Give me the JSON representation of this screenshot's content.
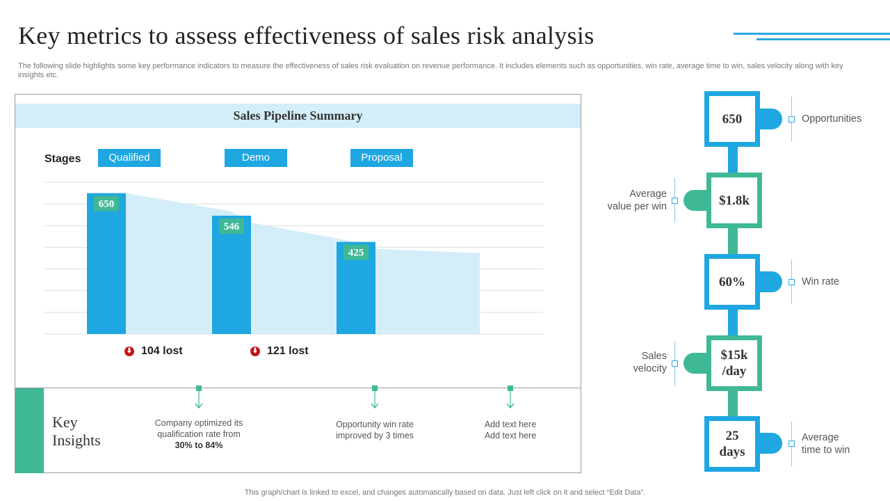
{
  "title": "Key metrics to assess effectiveness of sales risk analysis",
  "subtitle": "The following slide highlights some key performance indicators to measure the effectiveness of sales risk evaluation on revenue performance. It includes elements such as opportunities, win rate, average time to win, sales velocity along with key insights etc.",
  "panel": {
    "header": "Sales Pipeline Summary",
    "stages_label": "Stages",
    "stages": [
      "Qualified",
      "Demo",
      "Proposal"
    ],
    "lost": [
      {
        "label": "104 lost"
      },
      {
        "label": "121 lost"
      }
    ],
    "insights_title_1": "Key",
    "insights_title_2": "Insights",
    "insights": [
      {
        "line1": "Company optimized its",
        "line2": "qualification  rate from",
        "line3a": "30%",
        "line3b": " to ",
        "line3c": "84%"
      },
      {
        "line1": "Opportunity win rate",
        "line2": "improved  by 3 times"
      },
      {
        "line1": "Add text here",
        "line2": "Add text here"
      }
    ]
  },
  "chart_data": {
    "type": "bar",
    "categories": [
      "Qualified",
      "Demo",
      "Proposal"
    ],
    "values": [
      650,
      546,
      425
    ],
    "ylim": [
      0,
      700
    ],
    "grid": true,
    "area_overlay": true,
    "colors": {
      "bar": "#1ea7e1",
      "label_bg": "#3fb896",
      "area": "#d4eef9",
      "grid": "#dddddd"
    }
  },
  "metrics": [
    {
      "value_line1": "650",
      "value_line2": "",
      "label_line1": "Opportunities",
      "label_line2": "",
      "side": "right",
      "color": "#1ea7e1"
    },
    {
      "value_line1": "$1.8k",
      "value_line2": "",
      "label_line1": "Average",
      "label_line2": "value per win",
      "side": "left",
      "color": "#3fb896"
    },
    {
      "value_line1": "60%",
      "value_line2": "",
      "label_line1": "Win rate",
      "label_line2": "",
      "side": "right",
      "color": "#1ea7e1"
    },
    {
      "value_line1": "$15k",
      "value_line2": "/day",
      "label_line1": "Sales",
      "label_line2": "velocity",
      "side": "left",
      "color": "#3fb896"
    },
    {
      "value_line1": "25",
      "value_line2": "days",
      "label_line1": "Average",
      "label_line2": "time to win",
      "side": "right",
      "color": "#1ea7e1"
    }
  ],
  "footer": "This graph/chart is linked to excel,  and changes automatically based on data. Just left click on it and select “Edit Data”.",
  "colors": {
    "accent_blue": "#1ea7e1",
    "accent_green": "#3fb896",
    "lost_red": "#c0161c"
  },
  "icons": {
    "lost": "arrow-down-circle-icon",
    "insight": "arrow-down-icon"
  }
}
